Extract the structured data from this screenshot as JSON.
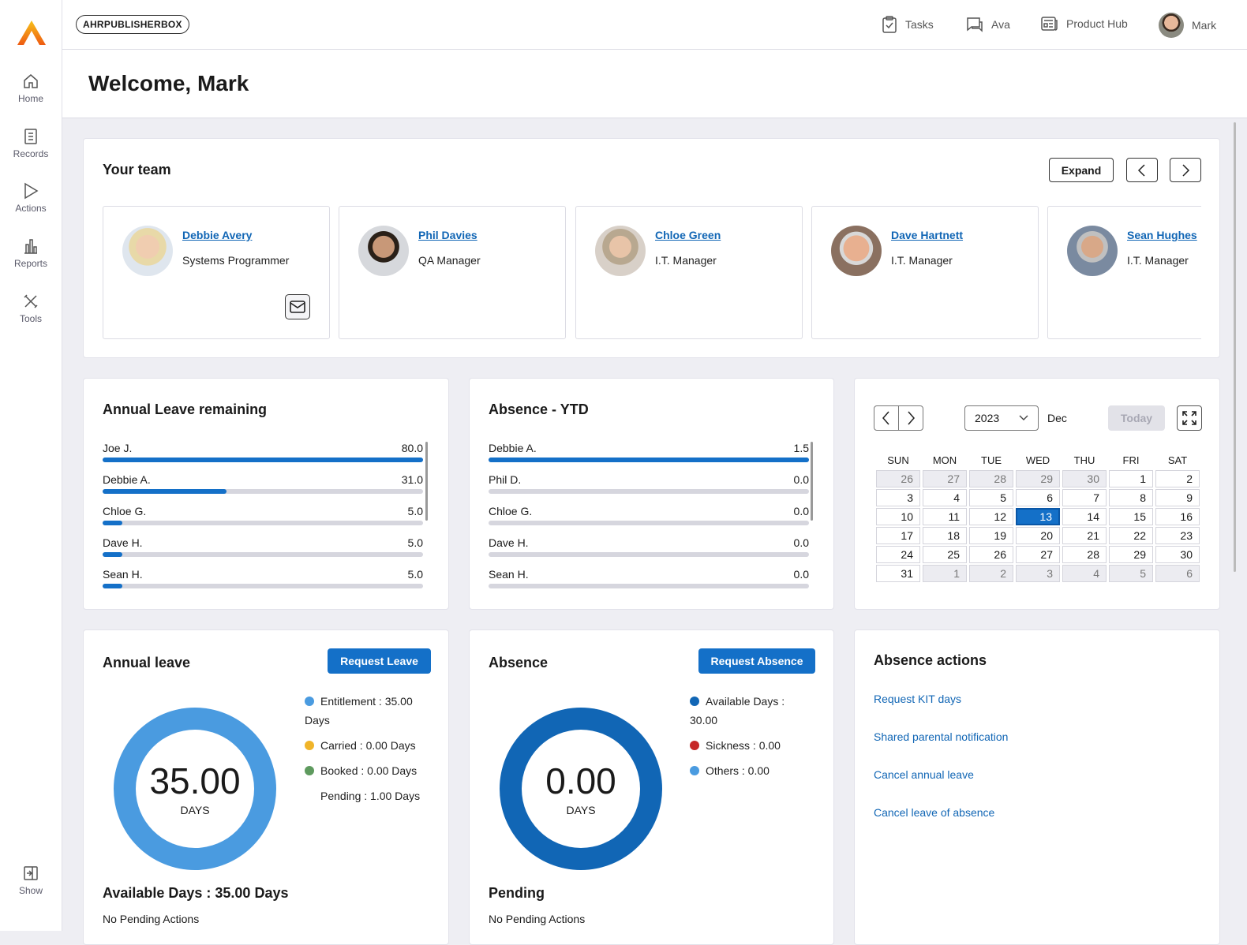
{
  "app": {
    "tenant": "AHRPUBLISHERBOX",
    "brand_color": "#f39c12",
    "accent": "#1470c8"
  },
  "sidebar": {
    "items": [
      {
        "label": "Home",
        "icon": "home-icon"
      },
      {
        "label": "Records",
        "icon": "document-icon"
      },
      {
        "label": "Actions",
        "icon": "play-icon"
      },
      {
        "label": "Reports",
        "icon": "bar-chart-icon"
      },
      {
        "label": "Tools",
        "icon": "tools-icon"
      }
    ],
    "show_label": "Show"
  },
  "topnav": {
    "tasks": "Tasks",
    "ava": "Ava",
    "product_hub": "Product Hub",
    "user": "Mark"
  },
  "welcome": "Welcome, Mark",
  "team": {
    "title": "Your team",
    "expand": "Expand",
    "members": [
      {
        "name": "Debbie Avery",
        "role": "Systems Programmer"
      },
      {
        "name": "Phil Davies",
        "role": "QA Manager"
      },
      {
        "name": "Chloe Green",
        "role": "I.T. Manager"
      },
      {
        "name": "Dave Hartnett",
        "role": "I.T. Manager"
      },
      {
        "name": "Sean Hughes",
        "role": "I.T. Manager"
      }
    ]
  },
  "leave_remaining": {
    "title": "Annual Leave remaining",
    "max": 80,
    "rows": [
      {
        "name": "Joe J.",
        "value": "80.0"
      },
      {
        "name": "Debbie A.",
        "value": "31.0"
      },
      {
        "name": "Chloe G.",
        "value": "5.0"
      },
      {
        "name": "Dave H.",
        "value": "5.0"
      },
      {
        "name": "Sean H.",
        "value": "5.0"
      }
    ]
  },
  "absence_ytd": {
    "title": "Absence - YTD",
    "max": 1.5,
    "rows": [
      {
        "name": "Debbie A.",
        "value": "1.5"
      },
      {
        "name": "Phil D.",
        "value": "0.0"
      },
      {
        "name": "Chloe G.",
        "value": "0.0"
      },
      {
        "name": "Dave H.",
        "value": "0.0"
      },
      {
        "name": "Sean H.",
        "value": "0.0"
      }
    ]
  },
  "calendar": {
    "year": "2023",
    "month": "Dec",
    "today": "Today",
    "days": [
      "SUN",
      "MON",
      "TUE",
      "WED",
      "THU",
      "FRI",
      "SAT"
    ],
    "selected": "13",
    "weeks": [
      [
        "26",
        "27",
        "28",
        "29",
        "30",
        "1",
        "2"
      ],
      [
        "3",
        "4",
        "5",
        "6",
        "7",
        "8",
        "9"
      ],
      [
        "10",
        "11",
        "12",
        "13",
        "14",
        "15",
        "16"
      ],
      [
        "17",
        "18",
        "19",
        "20",
        "21",
        "22",
        "23"
      ],
      [
        "24",
        "25",
        "26",
        "27",
        "28",
        "29",
        "30"
      ],
      [
        "31",
        "1",
        "2",
        "3",
        "4",
        "5",
        "6"
      ]
    ],
    "muted": [
      [
        0,
        1,
        2,
        3,
        4
      ],
      [],
      [],
      [],
      [],
      [
        1,
        2,
        3,
        4,
        5,
        6
      ]
    ]
  },
  "annual_leave": {
    "title": "Annual leave",
    "button": "Request Leave",
    "center": "35.00",
    "unit": "DAYS",
    "color": "#4a9be0",
    "legend": [
      {
        "text": "Entitlement : 35.00 Days",
        "color": "#4a9be0"
      },
      {
        "text": "Carried : 0.00 Days",
        "color": "#f0b429"
      },
      {
        "text": "Booked : 0.00 Days",
        "color": "#5e9a5e"
      },
      {
        "text": "Pending : 1.00 Days",
        "color": ""
      }
    ],
    "available": "Available Days : 35.00 Days",
    "pending": "No Pending Actions"
  },
  "absence": {
    "title": "Absence",
    "button": "Request Absence",
    "center": "0.00",
    "unit": "DAYS",
    "color": "#1166b5",
    "legend": [
      {
        "text": "Available Days : 30.00",
        "color": "#1166b5"
      },
      {
        "text": "Sickness : 0.00",
        "color": "#c62828"
      },
      {
        "text": "Others : 0.00",
        "color": "#4a9be0"
      }
    ],
    "heading": "Pending",
    "pending": "No Pending Actions"
  },
  "absence_actions": {
    "title": "Absence actions",
    "links": [
      "Request KIT days",
      "Shared parental notification",
      "Cancel annual leave",
      "Cancel leave of absence"
    ]
  }
}
